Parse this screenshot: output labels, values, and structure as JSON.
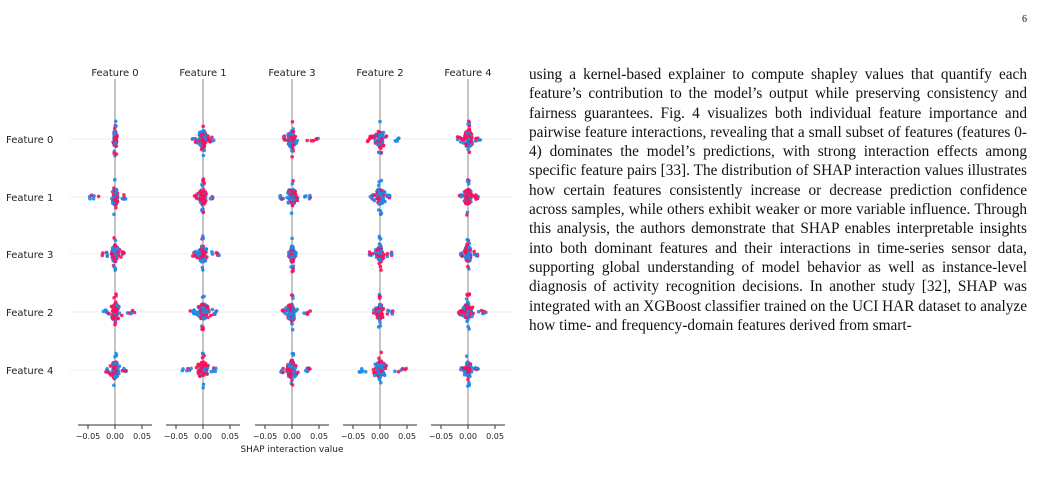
{
  "page": {
    "number": "6"
  },
  "chart_data": {
    "type": "scatter",
    "subtype": "shap-interaction-summary",
    "column_titles": [
      "Feature 0",
      "Feature 1",
      "Feature 3",
      "Feature 2",
      "Feature 4"
    ],
    "row_labels": [
      "Feature 0",
      "Feature 1",
      "Feature 3",
      "Feature 2",
      "Feature 4"
    ],
    "xlabel": "SHAP interaction value",
    "x_ticks": [
      "−0.05",
      "0.00",
      "0.05"
    ],
    "xlim": [
      -0.07,
      0.07
    ],
    "colors": {
      "low": "#1e88e5",
      "high": "#ff0d57",
      "axis": "#888888",
      "row_line": "#eeeeee"
    },
    "cells": [
      [
        {
          "spread": 0.006,
          "tail": [
            -0.002,
            0.004
          ]
        },
        {
          "spread": 0.018,
          "tail": [
            -0.02,
            0.02
          ]
        },
        {
          "spread": 0.016,
          "tail": [
            -0.018,
            0.05
          ]
        },
        {
          "spread": 0.022,
          "tail": [
            -0.024,
            0.04
          ]
        },
        {
          "spread": 0.016,
          "tail": [
            -0.02,
            0.024
          ]
        }
      ],
      [
        {
          "spread": 0.012,
          "tail": [
            -0.05,
            0.02
          ]
        },
        {
          "spread": 0.014,
          "tail": [
            -0.016,
            0.02
          ]
        },
        {
          "spread": 0.018,
          "tail": [
            -0.024,
            0.04
          ]
        },
        {
          "spread": 0.016,
          "tail": [
            -0.02,
            0.022
          ]
        },
        {
          "spread": 0.014,
          "tail": [
            -0.018,
            0.02
          ]
        }
      ],
      [
        {
          "spread": 0.014,
          "tail": [
            -0.024,
            0.02
          ]
        },
        {
          "spread": 0.016,
          "tail": [
            -0.02,
            0.03
          ]
        },
        {
          "spread": 0.006,
          "tail": [
            -0.006,
            0.008
          ]
        },
        {
          "spread": 0.014,
          "tail": [
            -0.02,
            0.022
          ]
        },
        {
          "spread": 0.012,
          "tail": [
            -0.014,
            0.018
          ]
        }
      ],
      [
        {
          "spread": 0.018,
          "tail": [
            -0.022,
            0.04
          ]
        },
        {
          "spread": 0.02,
          "tail": [
            -0.024,
            0.026
          ]
        },
        {
          "spread": 0.018,
          "tail": [
            -0.02,
            0.034
          ]
        },
        {
          "spread": 0.012,
          "tail": [
            -0.012,
            0.024
          ]
        },
        {
          "spread": 0.018,
          "tail": [
            -0.018,
            0.034
          ]
        }
      ],
      [
        {
          "spread": 0.016,
          "tail": [
            -0.018,
            0.022
          ]
        },
        {
          "spread": 0.02,
          "tail": [
            -0.04,
            0.026
          ]
        },
        {
          "spread": 0.018,
          "tail": [
            -0.026,
            0.036
          ]
        },
        {
          "spread": 0.022,
          "tail": [
            -0.04,
            0.05
          ]
        },
        {
          "spread": 0.012,
          "tail": [
            -0.014,
            0.02
          ]
        }
      ]
    ]
  },
  "text": {
    "paragraph": "using a kernel-based explainer to compute shapley values that quantify each feature’s contribution to the model’s output while preserving consistency and fairness guarantees. Fig. 4 visualizes both individual feature importance and pairwise feature interactions, revealing that a small subset of fea­tures (features 0-4) dominates the model’s predictions, with strong interaction effects among specific feature pairs [33]. The distribution of SHAP interaction values illustrates how certain features consistently increase or decrease prediction confidence across samples, while others exhibit weaker or more variable influence. Through this analysis, the authors demonstrate that SHAP enables interpretable insights into both dominant features and their interactions in time-series sensor data, supporting global understanding of model behavior as well as instance-level diagnosis of activity recognition deci­sions. In another study [32], SHAP was integrated with an XGBoost classifier trained on the UCI HAR dataset to analyze how time- and frequency-domain features derived from smart-"
  }
}
